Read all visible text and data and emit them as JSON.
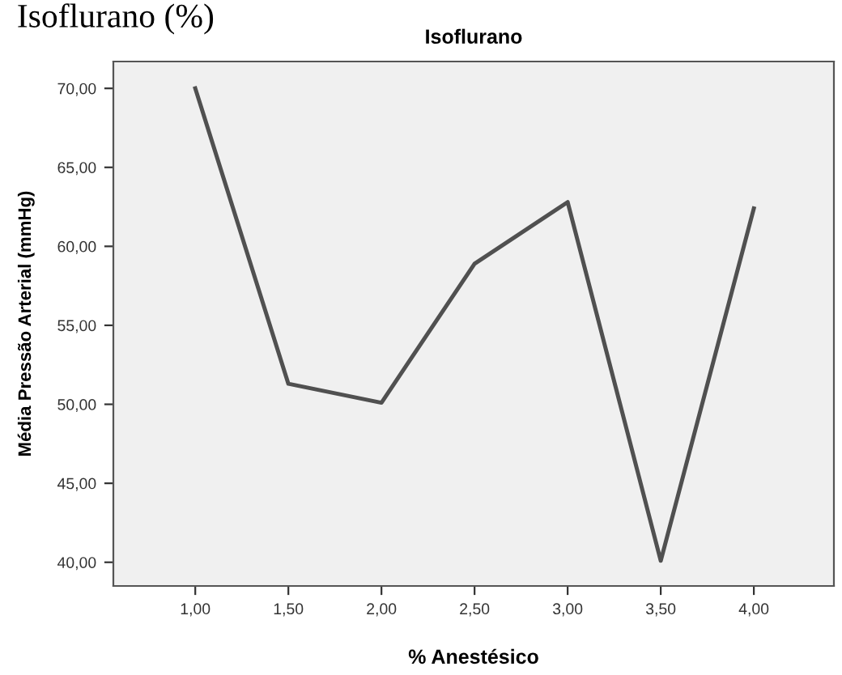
{
  "chart_data": {
    "type": "line",
    "title": "Isoflurano",
    "xlabel": "% Anestésico",
    "ylabel": "Média Pressão Arterial (mmHg)",
    "annotations": [
      "Isoflurano (%)"
    ],
    "x": [
      1.0,
      1.5,
      2.0,
      2.5,
      3.0,
      3.5,
      4.0
    ],
    "series": [
      {
        "color": "#505050",
        "values": [
          70.0,
          51.3,
          50.1,
          58.9,
          62.8,
          40.1,
          62.4
        ]
      }
    ],
    "xlim": [
      0.56,
      4.43
    ],
    "xticks": [
      {
        "value": 1.0,
        "label": "1,00"
      },
      {
        "value": 1.5,
        "label": "1,50"
      },
      {
        "value": 2.0,
        "label": "2,00"
      },
      {
        "value": 2.5,
        "label": "2,50"
      },
      {
        "value": 3.0,
        "label": "3,00"
      },
      {
        "value": 3.5,
        "label": "3,50"
      },
      {
        "value": 4.0,
        "label": "4,00"
      }
    ],
    "ylim": [
      38.5,
      71.7
    ],
    "yticks": [
      {
        "value": 40,
        "label": "40,00"
      },
      {
        "value": 45,
        "label": "45,00"
      },
      {
        "value": 50,
        "label": "50,00"
      },
      {
        "value": 55,
        "label": "55,00"
      },
      {
        "value": 60,
        "label": "60,00"
      },
      {
        "value": 65,
        "label": "65,00"
      },
      {
        "value": 70,
        "label": "70,00"
      }
    ],
    "grid": false,
    "legend": false,
    "marker": "none",
    "line_style": "solid"
  }
}
